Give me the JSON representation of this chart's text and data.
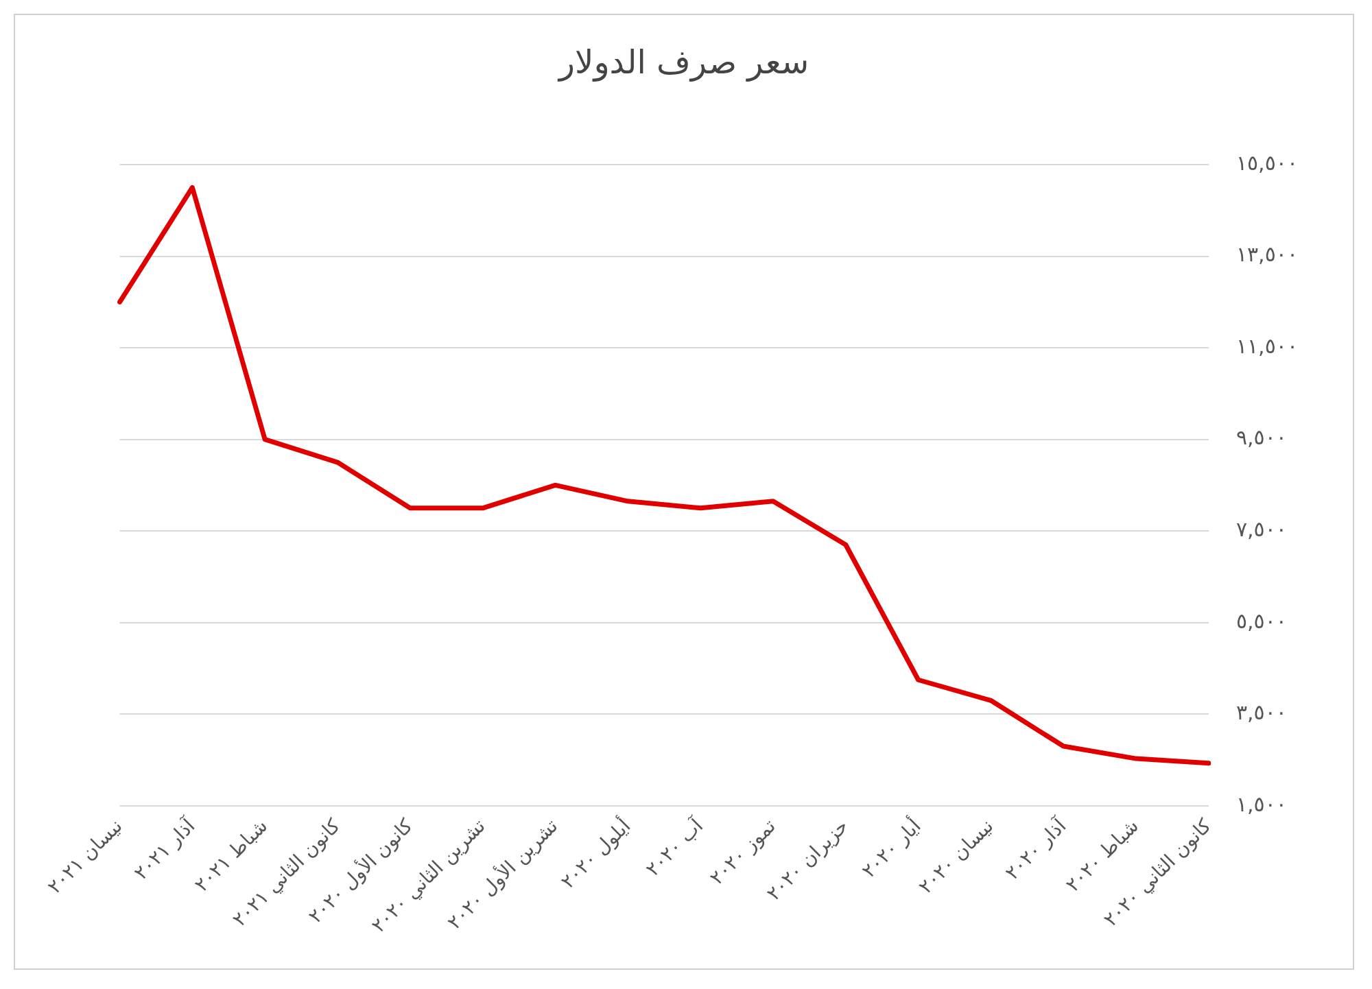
{
  "chart_data": {
    "type": "line",
    "title": "سعر صرف الدولار",
    "categories": [
      "نيسان ٢٠٢١",
      "آذار ٢٠٢١",
      "شباط ٢٠٢١",
      "كانون الثاني ٢٠٢١",
      "كانون الأول ٢٠٢٠",
      "تشرين الثاني ٢٠٢٠",
      "تشرين الأول ٢٠٢٠",
      "أيلول ٢٠٢٠",
      "آب ٢٠٢٠",
      "تموز ٢٠٢٠",
      "حزيران ٢٠٢٠",
      "أيار ٢٠٢٠",
      "نيسان ٢٠٢٠",
      "آذار ٢٠٢٠",
      "شباط ٢٠٢٠",
      "كانون الثاني ٢٠٢٠"
    ],
    "series": [
      {
        "color": "#e00000",
        "values": [
          12500,
          15000,
          9500,
          9000,
          8000,
          8000,
          8500,
          8150,
          8000,
          8150,
          7200,
          4250,
          3800,
          2800,
          2530,
          2430
        ]
      }
    ],
    "ylim": [
      1500,
      15500
    ],
    "yticks": [
      {
        "value": 1500,
        "label": "١,٥٠٠"
      },
      {
        "value": 3500,
        "label": "٣,٥٠٠"
      },
      {
        "value": 5500,
        "label": "٥,٥٠٠"
      },
      {
        "value": 7500,
        "label": "٧,٥٠٠"
      },
      {
        "value": 9500,
        "label": "٩,٥٠٠"
      },
      {
        "value": 11500,
        "label": "١١,٥٠٠"
      },
      {
        "value": 13500,
        "label": "١٣,٥٠٠"
      },
      {
        "value": 15500,
        "label": "١٥,٥٠٠"
      }
    ],
    "grid": "y",
    "legend": false,
    "marker": "none",
    "line_style": "solid"
  }
}
